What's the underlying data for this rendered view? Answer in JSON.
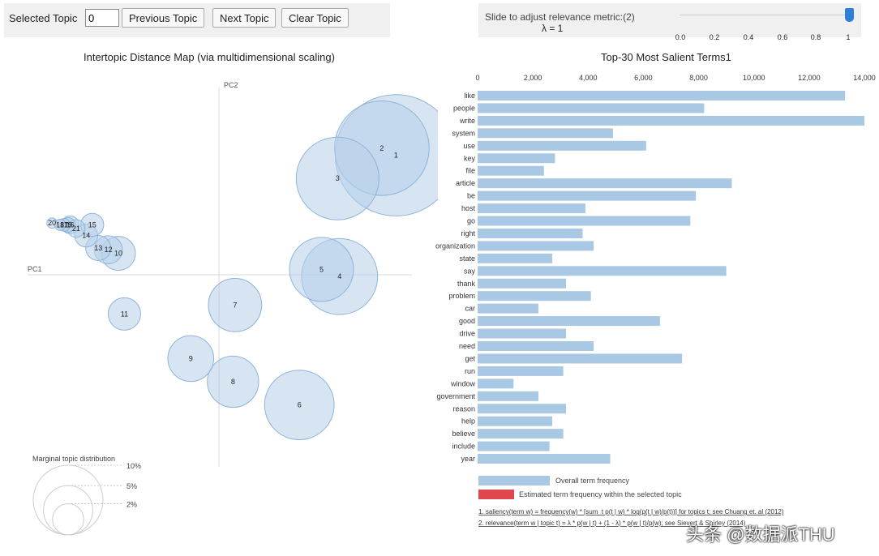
{
  "toolbar": {
    "selected_topic_label": "Selected Topic",
    "selected_topic_value": "0",
    "previous_label": "Previous Topic",
    "next_label": "Next Topic",
    "clear_label": "Clear Topic"
  },
  "slider": {
    "label": "Slide to adjust relevance metric:",
    "footnote_marker": "(2)",
    "lambda_text": "λ = 1",
    "value": 1,
    "ticks": [
      "0.0",
      "0.2",
      "0.4",
      "0.6",
      "0.8",
      "1"
    ]
  },
  "left_panel": {
    "title": "Intertopic Distance Map (via multidimensional scaling)",
    "pc1_label": "PC1",
    "pc2_label": "PC2",
    "legend_title": "Marginal topic distribution",
    "legend_items": [
      "2%",
      "5%",
      "10%"
    ]
  },
  "right_panel": {
    "title": "Top-30 Most Salient Terms",
    "title_marker": "1",
    "legend_overall": "Overall term frequency",
    "legend_estimated": "Estimated term frequency within the selected topic",
    "footnote1": "1. saliency(term w) = frequency(w) * [sum_t p(t | w) * log(p(t | w)/p(t))] for topics t; see Chuang et. al (2012)",
    "footnote2": "2. relevance(term w | topic t) = λ * p(w | t) + (1 - λ) * p(w | t)/p(w); see Sievert & Shirley (2014)"
  },
  "watermark": "头条 @数据派THU",
  "colors": {
    "bar": "#a8c8e4",
    "bubble_fill": "#b7cfe9",
    "bubble_stroke": "#8fb3d9",
    "estimated": "#e0474c",
    "slider_handle": "#2f7ed8",
    "panel_bg": "#f0f0f0"
  },
  "chart_data": [
    {
      "type": "scatter",
      "title": "Intertopic Distance Map (via multidimensional scaling)",
      "xlabel": "PC1",
      "ylabel": "PC2",
      "xlim": [
        -1,
        1
      ],
      "ylim": [
        -1,
        1
      ],
      "points": [
        {
          "topic": "1",
          "x": 0.88,
          "y": 0.67,
          "size": 14.0
        },
        {
          "topic": "2",
          "x": 0.81,
          "y": 0.71,
          "size": 8.5
        },
        {
          "topic": "3",
          "x": 0.59,
          "y": 0.54,
          "size": 6.5
        },
        {
          "topic": "4",
          "x": 0.6,
          "y": -0.01,
          "size": 5.5
        },
        {
          "topic": "5",
          "x": 0.51,
          "y": 0.03,
          "size": 3.9
        },
        {
          "topic": "6",
          "x": 0.4,
          "y": -0.73,
          "size": 4.6
        },
        {
          "topic": "7",
          "x": 0.08,
          "y": -0.17,
          "size": 2.7
        },
        {
          "topic": "8",
          "x": 0.07,
          "y": -0.6,
          "size": 2.5
        },
        {
          "topic": "9",
          "x": -0.14,
          "y": -0.47,
          "size": 2.0
        },
        {
          "topic": "10",
          "x": -0.5,
          "y": 0.12,
          "size": 1.1
        },
        {
          "topic": "11",
          "x": -0.47,
          "y": -0.22,
          "size": 1.0
        },
        {
          "topic": "12",
          "x": -0.55,
          "y": 0.14,
          "size": 0.75
        },
        {
          "topic": "13",
          "x": -0.6,
          "y": 0.15,
          "size": 0.6
        },
        {
          "topic": "14",
          "x": -0.66,
          "y": 0.22,
          "size": 0.5
        },
        {
          "topic": "15",
          "x": -0.63,
          "y": 0.28,
          "size": 0.5
        },
        {
          "topic": "16",
          "x": -0.74,
          "y": 0.28,
          "size": 0.3
        },
        {
          "topic": "17",
          "x": -0.77,
          "y": 0.28,
          "size": 0.15
        },
        {
          "topic": "18",
          "x": -0.79,
          "y": 0.28,
          "size": 0.12
        },
        {
          "topic": "19",
          "x": -0.75,
          "y": 0.28,
          "size": 0.2
        },
        {
          "topic": "20",
          "x": -0.83,
          "y": 0.29,
          "size": 0.1
        },
        {
          "topic": "21",
          "x": -0.71,
          "y": 0.26,
          "size": 0.3
        }
      ]
    },
    {
      "type": "bar",
      "orientation": "horizontal",
      "title": "Top-30 Most Salient Terms",
      "xlim": [
        0,
        14000
      ],
      "xticks": [
        "0",
        "2,000",
        "4,000",
        "6,000",
        "8,000",
        "10,000",
        "12,000",
        "14,000"
      ],
      "categories": [
        "like",
        "people",
        "write",
        "system",
        "use",
        "key",
        "file",
        "article",
        "be",
        "host",
        "go",
        "right",
        "organization",
        "state",
        "say",
        "thank",
        "problem",
        "car",
        "good",
        "drive",
        "need",
        "get",
        "run",
        "window",
        "government",
        "reason",
        "help",
        "believe",
        "include",
        "year"
      ],
      "series": [
        {
          "name": "Overall term frequency",
          "values": [
            13300,
            8200,
            14000,
            4900,
            6100,
            2800,
            2400,
            9200,
            7900,
            3900,
            7700,
            3800,
            4200,
            2700,
            9000,
            3200,
            4100,
            2200,
            6600,
            3200,
            4200,
            7400,
            3100,
            1300,
            2200,
            3200,
            2700,
            3100,
            2600,
            4800
          ]
        }
      ]
    }
  ]
}
